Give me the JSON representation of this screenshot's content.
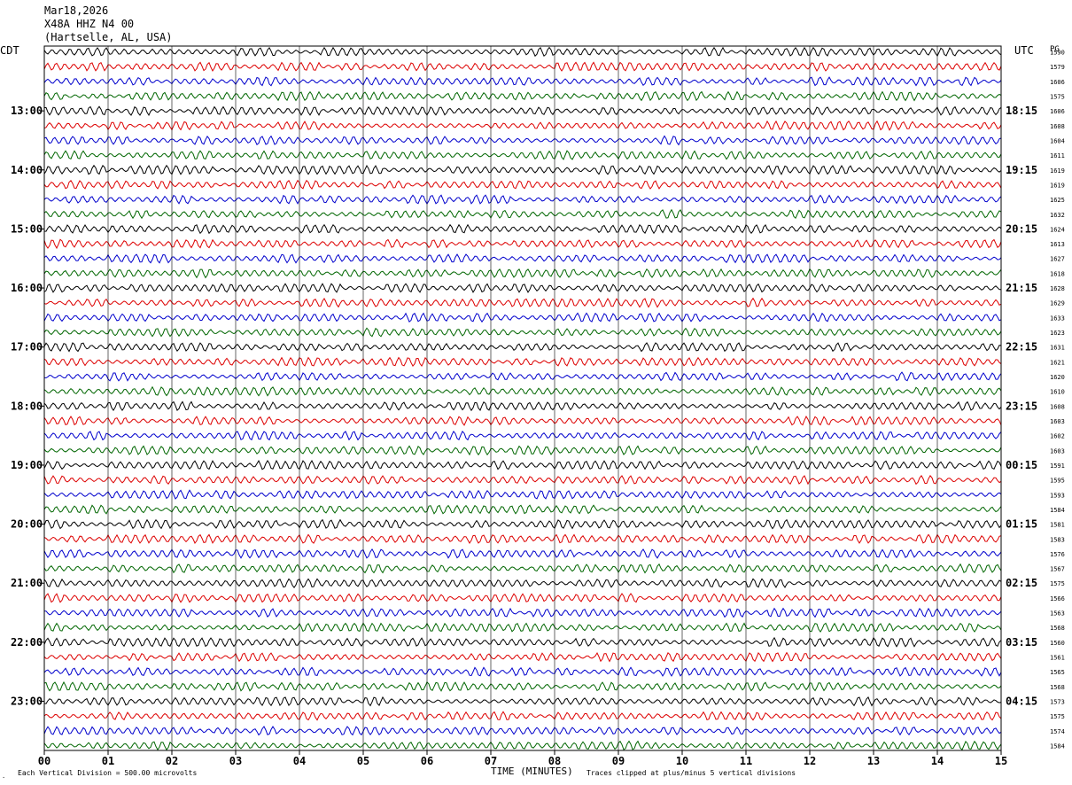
{
  "header": {
    "date": "Mar18,2026",
    "station": "X48A HHZ N4 00",
    "location": "(Hartselle, AL, USA)"
  },
  "labels": {
    "left_tz": "CDT",
    "right_tz": "UTC",
    "right_col": "PG"
  },
  "footer": {
    "scale_note": "Each Vertical Division =  500.00 microvolts",
    "xlabel": "TIME (MINUTES)",
    "clip_note": "Traces clipped at plus/minus 5 vertical divisions"
  },
  "colors": {
    "cycle": [
      "#000000",
      "#dd0000",
      "#0000cc",
      "#006600"
    ],
    "grid": "#000000"
  },
  "chart_data": {
    "type": "line",
    "title": "X48A HHZ N4 00",
    "xlabel": "TIME (MINUTES)",
    "ylabel": "",
    "xlim": [
      0,
      15
    ],
    "x_ticks": [
      "00",
      "01",
      "02",
      "03",
      "04",
      "05",
      "06",
      "07",
      "08",
      "09",
      "10",
      "11",
      "12",
      "13",
      "14",
      "15"
    ],
    "left_hour_labels": [
      "13:00",
      "14:00",
      "15:00",
      "16:00",
      "17:00",
      "18:00",
      "19:00",
      "20:00",
      "21:00",
      "22:00",
      "23:00"
    ],
    "right_hour_labels": [
      "18:15",
      "19:15",
      "20:15",
      "21:15",
      "22:15",
      "23:15",
      "00:15",
      "01:15",
      "02:15",
      "03:15",
      "04:15"
    ],
    "trace_values": [
      1590,
      1579,
      1606,
      1575,
      1606,
      1608,
      1604,
      1611,
      1619,
      1619,
      1625,
      1632,
      1624,
      1613,
      1627,
      1618,
      1628,
      1629,
      1633,
      1623,
      1631,
      1621,
      1620,
      1610,
      1608,
      1603,
      1602,
      1603,
      1591,
      1595,
      1593,
      1584,
      1581,
      1583,
      1576,
      1567,
      1575,
      1566,
      1563,
      1568,
      1560,
      1561,
      1565,
      1568,
      1573,
      1575,
      1574,
      1584
    ],
    "grid": true
  }
}
